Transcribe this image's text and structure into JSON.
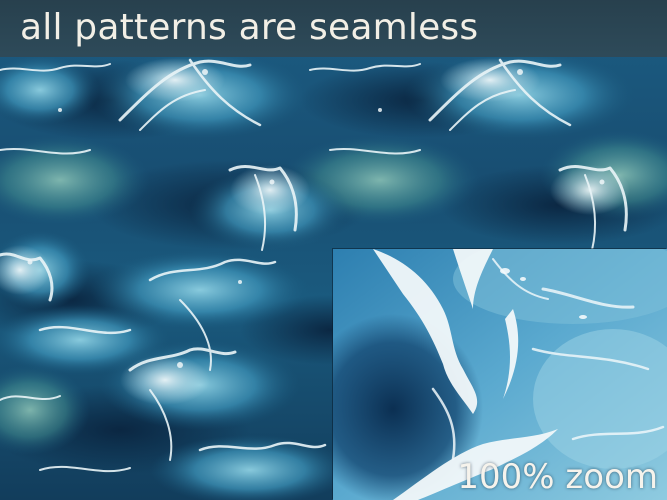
{
  "title": "all patterns are seamless",
  "inset": {
    "label": "100% zoom"
  },
  "colors": {
    "deep_water": "#0c2c45",
    "mid_water": "#1f6d95",
    "light_water": "#6fb4cf",
    "foam": "#eef6f8",
    "title_band": "#34464e"
  }
}
